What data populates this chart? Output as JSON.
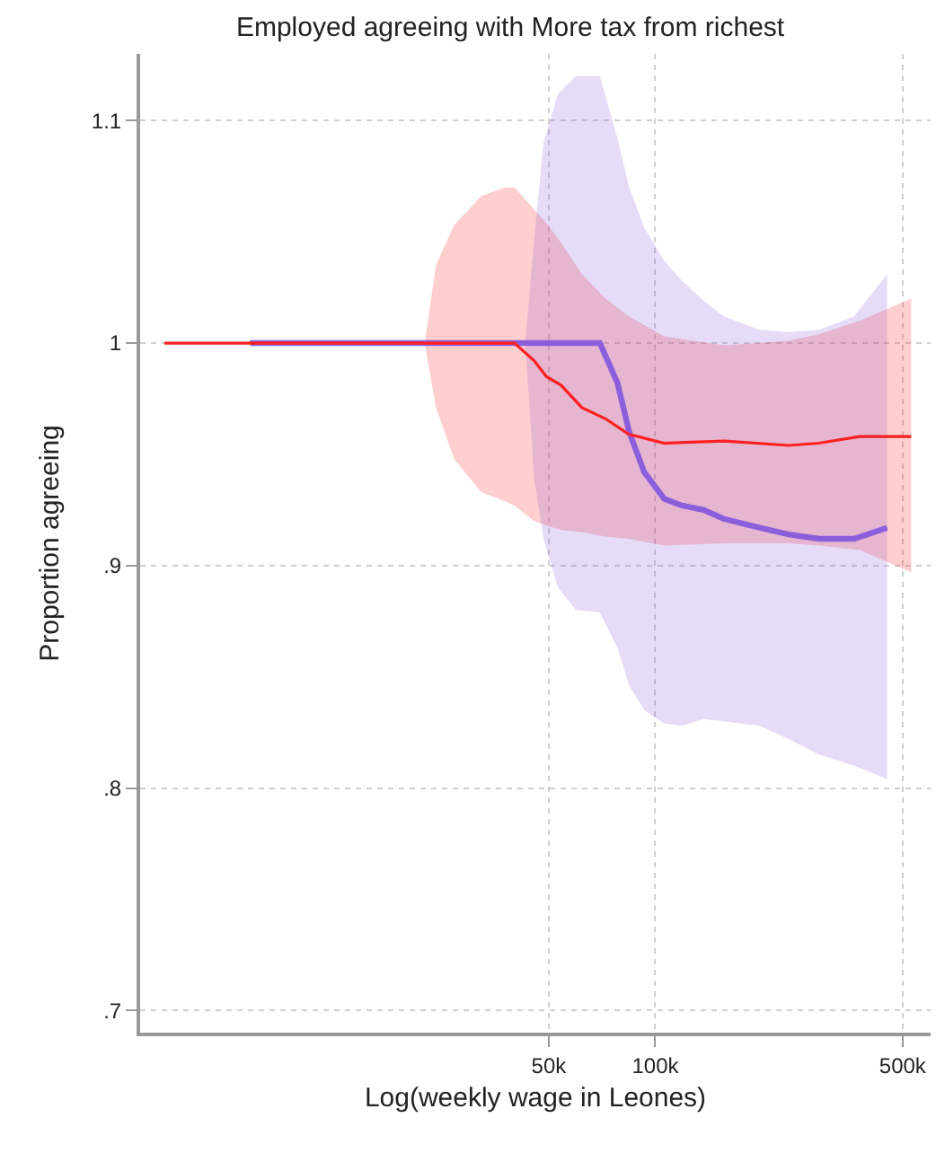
{
  "chart_data": {
    "type": "line",
    "title": "Employed agreeing with More tax from richest",
    "xlabel": "Log(weekly wage in Leones)",
    "ylabel": "Proportion agreeing",
    "log": "x",
    "grid": true,
    "xlim": [
      3500,
      600000
    ],
    "ylim": [
      0.69,
      1.13
    ],
    "xticks": [
      {
        "value": 50000,
        "label": "50k"
      },
      {
        "value": 100000,
        "label": "100k"
      },
      {
        "value": 500000,
        "label": "500k"
      }
    ],
    "yticks": [
      {
        "value": 0.7,
        "label": ".7"
      },
      {
        "value": 0.8,
        "label": ".8"
      },
      {
        "value": 0.9,
        "label": ".9"
      },
      {
        "value": 1,
        "label": "1"
      },
      {
        "value": 1.1,
        "label": "1.1"
      }
    ],
    "series": [
      {
        "color": "#ff2020",
        "x": [
          4100,
          7160,
          22300,
          24000,
          27000,
          32200,
          37500,
          40000,
          45500,
          49200,
          54200,
          62000,
          72300,
          84100,
          106000,
          157000,
          238000,
          290000,
          378000,
          529000
        ],
        "values": [
          1,
          1,
          1,
          1,
          1,
          1,
          1,
          1,
          0.992,
          0.985,
          0.981,
          0.971,
          0.966,
          0.959,
          0.955,
          0.956,
          0.954,
          0.955,
          0.958,
          0.958
        ],
        "upper": [
          1,
          1,
          1,
          1.035,
          1.053,
          1.066,
          1.07,
          1.07,
          1.06,
          1.054,
          1.045,
          1.031,
          1.02,
          1.012,
          1.003,
          0.999,
          1.001,
          1.004,
          1.01,
          1.02
        ],
        "lower": [
          1,
          1,
          1,
          0.971,
          0.948,
          0.933,
          0.929,
          0.927,
          0.92,
          0.918,
          0.916,
          0.915,
          0.913,
          0.912,
          0.909,
          0.91,
          0.91,
          0.909,
          0.907,
          0.897
        ]
      },
      {
        "color": "#8b5fdc",
        "x": [
          7160,
          42900,
          45500,
          48300,
          53100,
          59700,
          69700,
          78200,
          84400,
          93000,
          106000,
          119000,
          137000,
          156000,
          197000,
          238000,
          290000,
          365000,
          452000
        ],
        "values": [
          1,
          1,
          1,
          1,
          1,
          1,
          1,
          0.982,
          0.96,
          0.942,
          0.93,
          0.927,
          0.925,
          0.921,
          0.917,
          0.914,
          0.912,
          0.912,
          0.917
        ],
        "upper": [
          1,
          1,
          1.047,
          1.09,
          1.112,
          1.12,
          1.12,
          1.092,
          1.07,
          1.052,
          1.037,
          1.028,
          1.019,
          1.012,
          1.006,
          1.005,
          1.006,
          1.012,
          1.031
        ],
        "lower": [
          1,
          1,
          0.939,
          0.912,
          0.89,
          0.88,
          0.879,
          0.863,
          0.846,
          0.835,
          0.829,
          0.828,
          0.831,
          0.83,
          0.828,
          0.822,
          0.815,
          0.81,
          0.804
        ]
      }
    ]
  }
}
